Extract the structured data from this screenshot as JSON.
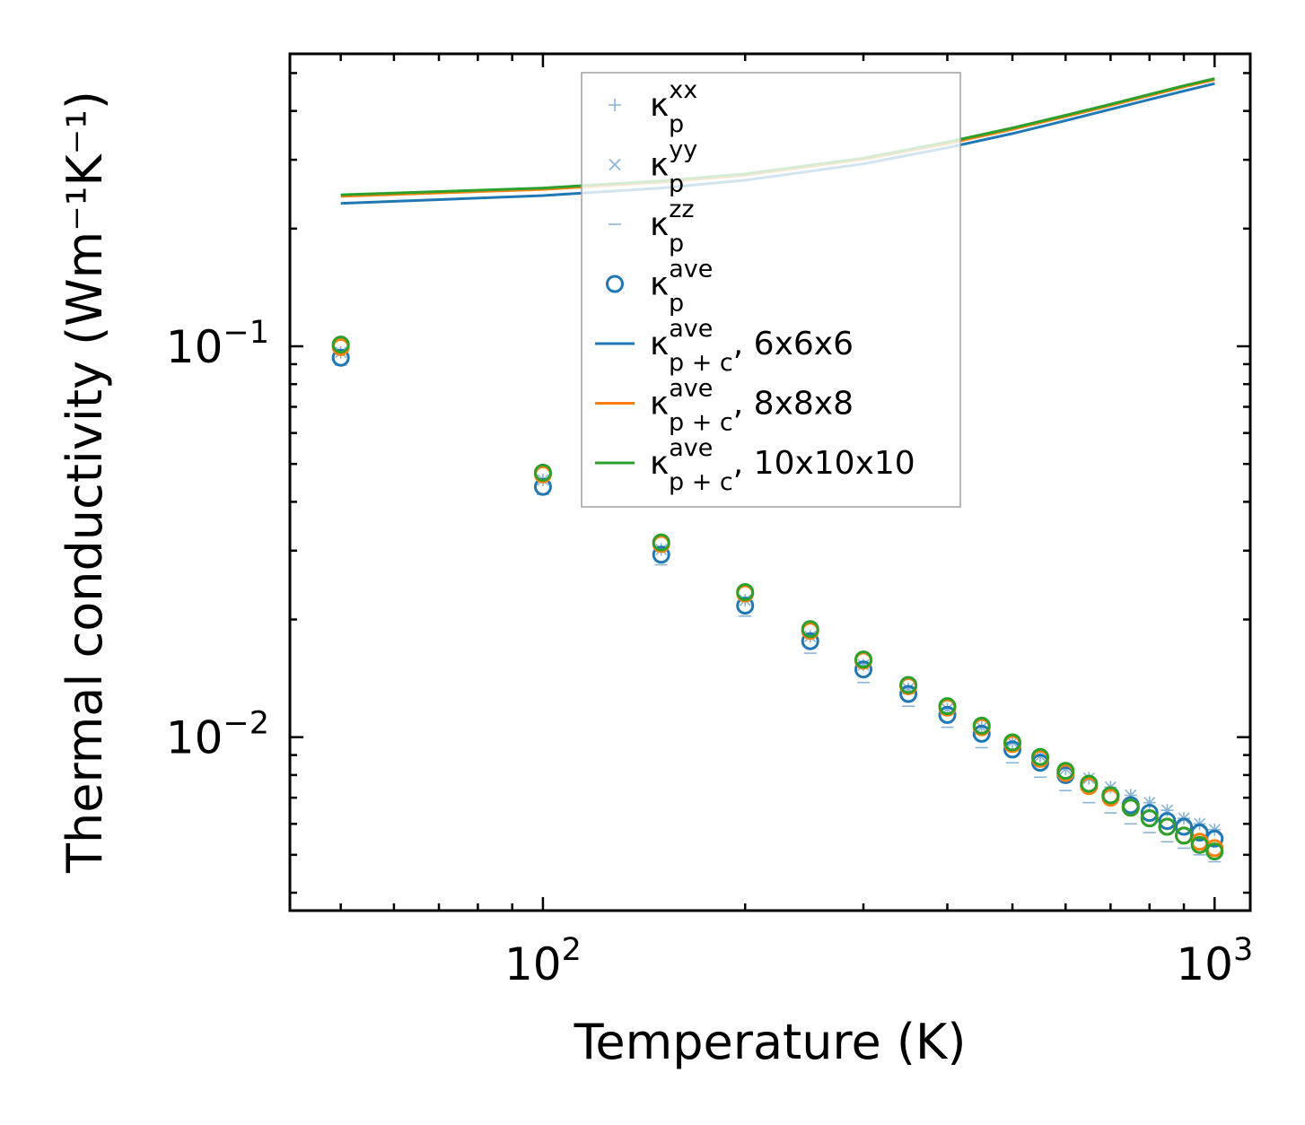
{
  "chart_data": {
    "type": "scatter",
    "title": "",
    "xlabel": "Temperature (K)",
    "ylabel": "Thermal conductivity (Wm⁻¹K⁻¹)",
    "xscale": "log",
    "yscale": "log",
    "xlim": [
      42,
      1130
    ],
    "ylim": [
      0.0036,
      0.56
    ],
    "grid": false,
    "legend_position": "upper-center",
    "x_ticks": [
      {
        "value": 100,
        "base": "10",
        "exp": "2"
      },
      {
        "value": 1000,
        "base": "10",
        "exp": "3"
      }
    ],
    "y_ticks": [
      {
        "value": 0.1,
        "base": "10",
        "exp": "−1"
      },
      {
        "value": 0.01,
        "base": "10",
        "exp": "−2"
      }
    ],
    "temperatures": [
      50,
      100,
      150,
      200,
      250,
      300,
      350,
      400,
      450,
      500,
      550,
      600,
      650,
      700,
      750,
      800,
      850,
      900,
      950,
      1000
    ],
    "series": [
      {
        "name": "kxx_6",
        "legend_index": 0,
        "marker": "plus",
        "color": "#8ab3d6",
        "values": [
          0.0965,
          0.0455,
          0.0302,
          0.0224,
          0.0181,
          0.0153,
          0.0133,
          0.0118,
          0.0106,
          0.0097,
          0.00895,
          0.0083,
          0.00785,
          0.00745,
          0.0071,
          0.0068,
          0.0065,
          0.0062,
          0.006,
          0.0058
        ]
      },
      {
        "name": "kyy_6",
        "legend_index": 1,
        "marker": "x",
        "color": "#8ab3d6",
        "values": [
          0.0965,
          0.0455,
          0.0302,
          0.0224,
          0.0181,
          0.0153,
          0.0133,
          0.0118,
          0.0106,
          0.0097,
          0.00895,
          0.0083,
          0.00785,
          0.00745,
          0.0071,
          0.0068,
          0.0065,
          0.0062,
          0.006,
          0.0058
        ]
      },
      {
        "name": "kzz_6",
        "legend_index": 2,
        "marker": "dash",
        "color": "#8ab3d6",
        "values": [
          0.0895,
          0.0418,
          0.0276,
          0.0204,
          0.0164,
          0.0138,
          0.012,
          0.0106,
          0.0094,
          0.0086,
          0.0079,
          0.0073,
          0.0068,
          0.0064,
          0.006,
          0.0057,
          0.0054,
          0.0052,
          0.005,
          0.0048
        ]
      },
      {
        "name": "kave_6",
        "legend_index": 3,
        "marker": "circle",
        "color": "#1f77b4",
        "values": [
          0.0935,
          0.0437,
          0.0293,
          0.0217,
          0.0176,
          0.0149,
          0.0129,
          0.0114,
          0.0102,
          0.0093,
          0.0086,
          0.008,
          0.0075,
          0.0071,
          0.0067,
          0.0064,
          0.0061,
          0.0059,
          0.0057,
          0.0055
        ]
      },
      {
        "name": "kave_8",
        "legend_index": null,
        "marker": "circle",
        "color": "#ff7f0e",
        "values": [
          0.0995,
          0.047,
          0.0312,
          0.0233,
          0.0187,
          0.0157,
          0.0135,
          0.0119,
          0.0106,
          0.0096,
          0.0088,
          0.0081,
          0.0075,
          0.007,
          0.0066,
          0.0062,
          0.0059,
          0.0056,
          0.0054,
          0.0052
        ]
      },
      {
        "name": "kave_10",
        "legend_index": null,
        "marker": "circle",
        "color": "#2ca02c",
        "values": [
          0.101,
          0.0475,
          0.0315,
          0.0235,
          0.0189,
          0.0158,
          0.0136,
          0.012,
          0.0107,
          0.0097,
          0.0089,
          0.0082,
          0.0076,
          0.0071,
          0.0066,
          0.0062,
          0.0059,
          0.0056,
          0.0053,
          0.0051
        ]
      }
    ],
    "lines": [
      {
        "name": "kpc_6",
        "legend_index": 4,
        "color": "#1f77b4",
        "x": [
          50,
          100,
          150,
          200,
          300,
          400,
          500,
          600,
          700,
          800,
          900,
          1000
        ],
        "values": [
          0.232,
          0.243,
          0.254,
          0.266,
          0.293,
          0.322,
          0.35,
          0.378,
          0.404,
          0.428,
          0.45,
          0.47
        ]
      },
      {
        "name": "kpc_8",
        "legend_index": 5,
        "color": "#ff7f0e",
        "x": [
          50,
          100,
          150,
          200,
          300,
          400,
          500,
          600,
          700,
          800,
          900,
          1000
        ],
        "values": [
          0.242,
          0.252,
          0.263,
          0.274,
          0.301,
          0.33,
          0.359,
          0.387,
          0.413,
          0.438,
          0.461,
          0.481
        ]
      },
      {
        "name": "kpc_10",
        "legend_index": 6,
        "color": "#2ca02c",
        "x": [
          50,
          100,
          150,
          200,
          300,
          400,
          500,
          600,
          700,
          800,
          900,
          1000
        ],
        "values": [
          0.244,
          0.254,
          0.265,
          0.276,
          0.303,
          0.333,
          0.362,
          0.39,
          0.416,
          0.441,
          0.464,
          0.484
        ]
      }
    ],
    "legend": [
      {
        "symbol": "κ",
        "sup": "xx",
        "sub": "p",
        "suffix": ""
      },
      {
        "symbol": "κ",
        "sup": "yy",
        "sub": "p",
        "suffix": ""
      },
      {
        "symbol": "κ",
        "sup": "zz",
        "sub": "p",
        "suffix": ""
      },
      {
        "symbol": "κ",
        "sup": "ave",
        "sub": "p",
        "suffix": ""
      },
      {
        "symbol": "κ",
        "sup": "ave",
        "sub": "p + c",
        "suffix": ", 6x6x6"
      },
      {
        "symbol": "κ",
        "sup": "ave",
        "sub": "p + c",
        "suffix": ", 8x8x8"
      },
      {
        "symbol": "κ",
        "sup": "ave",
        "sub": "p + c",
        "suffix": ", 10x10x10"
      }
    ]
  }
}
